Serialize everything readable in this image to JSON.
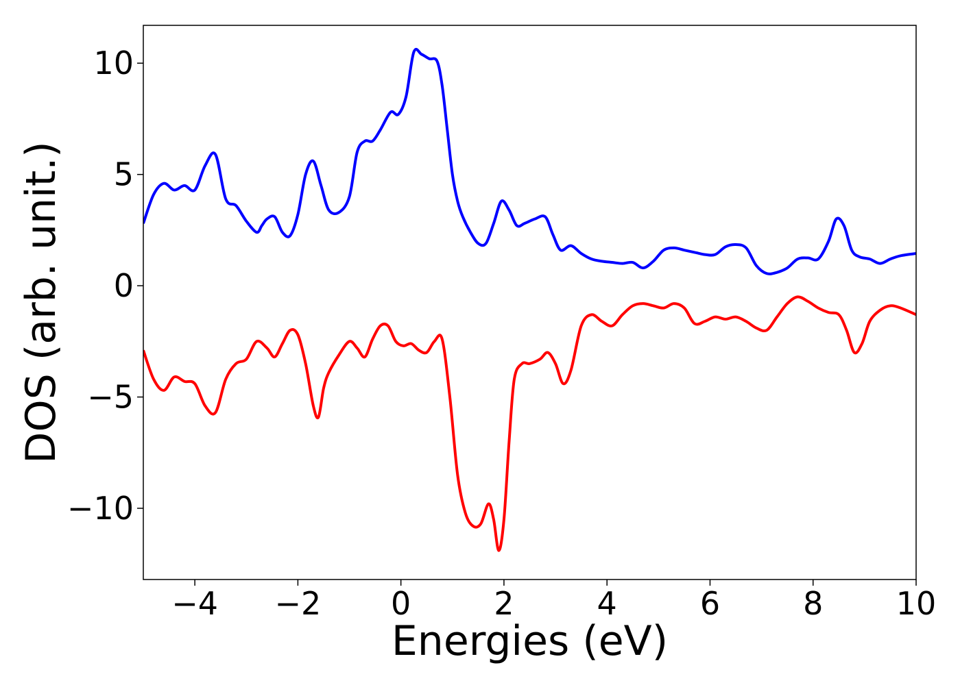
{
  "chart_data": {
    "type": "line",
    "title": "",
    "xlabel": "Energies (eV)",
    "ylabel": "DOS (arb. unit.)",
    "xlim": [
      -5,
      10
    ],
    "ylim": [
      -13.2,
      11.7
    ],
    "x_ticks": [
      -4,
      -2,
      0,
      2,
      4,
      6,
      8,
      10
    ],
    "y_ticks": [
      10,
      5,
      0,
      -5,
      -10
    ],
    "x_tick_labels": [
      "−4",
      "−2",
      "0",
      "2",
      "4",
      "6",
      "8",
      "10"
    ],
    "y_tick_labels": [
      "10",
      "5",
      "0",
      "−5",
      "−10"
    ],
    "grid": false,
    "legend": "none",
    "series": [
      {
        "color": "#0000ff",
        "x": [
          -5.0,
          -4.8,
          -4.6,
          -4.4,
          -4.2,
          -4.0,
          -3.8,
          -3.6,
          -3.4,
          -3.2,
          -3.0,
          -2.8,
          -2.7,
          -2.6,
          -2.45,
          -2.3,
          -2.15,
          -2.0,
          -1.85,
          -1.7,
          -1.55,
          -1.4,
          -1.2,
          -1.0,
          -0.85,
          -0.7,
          -0.55,
          -0.4,
          -0.2,
          -0.05,
          0.1,
          0.25,
          0.4,
          0.55,
          0.7,
          0.8,
          0.9,
          1.0,
          1.1,
          1.2,
          1.35,
          1.5,
          1.65,
          1.8,
          1.95,
          2.1,
          2.25,
          2.4,
          2.6,
          2.8,
          2.95,
          3.1,
          3.3,
          3.5,
          3.7,
          3.9,
          4.1,
          4.3,
          4.5,
          4.7,
          4.9,
          5.1,
          5.3,
          5.5,
          5.7,
          5.9,
          6.1,
          6.3,
          6.5,
          6.7,
          6.9,
          7.1,
          7.3,
          7.5,
          7.7,
          7.9,
          8.1,
          8.3,
          8.45,
          8.6,
          8.75,
          8.9,
          9.1,
          9.3,
          9.5,
          9.7,
          10.0
        ],
        "y": [
          2.8,
          4.1,
          4.6,
          4.3,
          4.5,
          4.3,
          5.4,
          5.9,
          3.9,
          3.6,
          2.9,
          2.4,
          2.7,
          3.0,
          3.1,
          2.4,
          2.25,
          3.2,
          5.0,
          5.6,
          4.5,
          3.4,
          3.3,
          4.0,
          6.0,
          6.5,
          6.5,
          7.0,
          7.8,
          7.7,
          8.5,
          10.5,
          10.4,
          10.2,
          10.1,
          9.0,
          7.0,
          5.0,
          3.8,
          3.1,
          2.4,
          1.9,
          1.9,
          2.8,
          3.8,
          3.4,
          2.7,
          2.8,
          3.0,
          3.1,
          2.3,
          1.6,
          1.8,
          1.45,
          1.2,
          1.1,
          1.05,
          1.0,
          1.05,
          0.8,
          1.1,
          1.6,
          1.7,
          1.6,
          1.5,
          1.4,
          1.4,
          1.75,
          1.85,
          1.7,
          0.9,
          0.55,
          0.6,
          0.8,
          1.2,
          1.25,
          1.2,
          2.0,
          3.0,
          2.7,
          1.6,
          1.3,
          1.2,
          1.0,
          1.2,
          1.35,
          1.45
        ]
      },
      {
        "color": "#ff0000",
        "x": [
          -5.0,
          -4.8,
          -4.6,
          -4.4,
          -4.2,
          -4.0,
          -3.8,
          -3.6,
          -3.4,
          -3.2,
          -3.0,
          -2.8,
          -2.6,
          -2.45,
          -2.3,
          -2.15,
          -2.0,
          -1.85,
          -1.7,
          -1.6,
          -1.5,
          -1.4,
          -1.2,
          -1.0,
          -0.85,
          -0.7,
          -0.55,
          -0.4,
          -0.25,
          -0.1,
          0.05,
          0.2,
          0.35,
          0.5,
          0.65,
          0.8,
          0.95,
          1.1,
          1.25,
          1.4,
          1.55,
          1.7,
          1.8,
          1.9,
          2.0,
          2.1,
          2.2,
          2.35,
          2.5,
          2.7,
          2.85,
          3.0,
          3.15,
          3.3,
          3.5,
          3.7,
          3.9,
          4.1,
          4.3,
          4.5,
          4.7,
          4.9,
          5.1,
          5.3,
          5.5,
          5.7,
          5.9,
          6.1,
          6.3,
          6.5,
          6.7,
          6.9,
          7.1,
          7.3,
          7.5,
          7.7,
          7.9,
          8.1,
          8.3,
          8.5,
          8.65,
          8.8,
          8.95,
          9.1,
          9.3,
          9.5,
          9.7,
          10.0
        ],
        "y": [
          -2.9,
          -4.2,
          -4.7,
          -4.1,
          -4.3,
          -4.4,
          -5.4,
          -5.7,
          -4.2,
          -3.5,
          -3.3,
          -2.5,
          -2.8,
          -3.2,
          -2.6,
          -2.0,
          -2.2,
          -3.5,
          -5.4,
          -5.9,
          -4.6,
          -3.9,
          -3.1,
          -2.5,
          -2.8,
          -3.2,
          -2.4,
          -1.8,
          -1.8,
          -2.5,
          -2.7,
          -2.6,
          -2.9,
          -3.0,
          -2.5,
          -2.4,
          -5.0,
          -8.5,
          -10.2,
          -10.8,
          -10.7,
          -9.8,
          -10.5,
          -11.9,
          -10.5,
          -7.0,
          -4.2,
          -3.5,
          -3.5,
          -3.3,
          -3.0,
          -3.5,
          -4.4,
          -3.8,
          -1.8,
          -1.3,
          -1.6,
          -1.8,
          -1.3,
          -0.9,
          -0.8,
          -0.9,
          -1.0,
          -0.8,
          -1.0,
          -1.7,
          -1.6,
          -1.4,
          -1.5,
          -1.4,
          -1.6,
          -1.9,
          -2.0,
          -1.4,
          -0.8,
          -0.5,
          -0.7,
          -1.0,
          -1.2,
          -1.3,
          -2.0,
          -3.0,
          -2.6,
          -1.6,
          -1.1,
          -0.9,
          -1.0,
          -1.3
        ]
      }
    ]
  }
}
